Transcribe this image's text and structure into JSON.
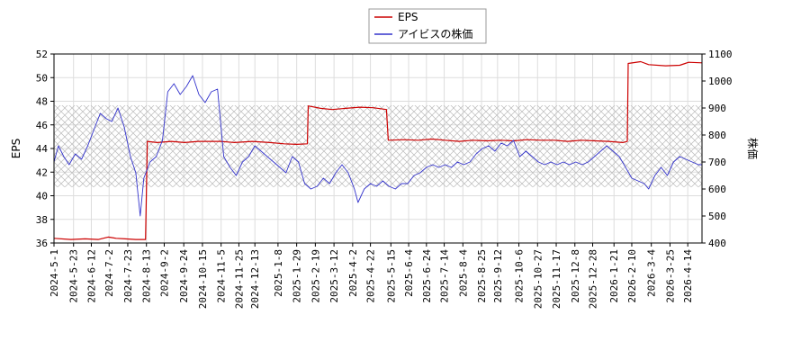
{
  "chart_data": {
    "type": "line",
    "title": "",
    "xlabel": "",
    "ylabel_left": "EPS",
    "ylabel_right": "株価",
    "left_ylim": [
      36,
      52
    ],
    "left_ticks": [
      "36",
      "38",
      "40",
      "42",
      "44",
      "46",
      "48",
      "50",
      "52"
    ],
    "right_ylim": [
      400,
      1100
    ],
    "right_ticks": [
      "400",
      "500",
      "600",
      "700",
      "800",
      "900",
      "1000",
      "1100"
    ],
    "x_start": "2024-05-01",
    "x_end": "2026-04-30",
    "x_ticks": [
      "2024-5-1",
      "2024-5-23",
      "2024-6-12",
      "2024-7-2",
      "2024-7-23",
      "2024-8-13",
      "2024-9-2",
      "2024-9-24",
      "2024-10-15",
      "2024-11-5",
      "2024-11-25",
      "2024-12-13",
      "2025-1-8",
      "2025-1-29",
      "2025-2-19",
      "2025-3-12",
      "2025-4-2",
      "2025-4-22",
      "2025-5-15",
      "2025-6-4",
      "2025-6-24",
      "2025-7-14",
      "2025-8-4",
      "2025-8-25",
      "2025-9-12",
      "2025-10-6",
      "2025-10-27",
      "2025-11-17",
      "2025-12-8",
      "2025-12-28",
      "2026-1-21",
      "2026-2-10",
      "2026-3-4",
      "2026-3-25",
      "2026-4-14"
    ],
    "grid": true,
    "legend_position": "top-center",
    "band_right_axis": [
      607,
      910
    ],
    "series": [
      {
        "name": "EPS",
        "axis": "left",
        "color": "#cc0000",
        "points": [
          [
            "2024-05-01",
            36.4
          ],
          [
            "2024-05-20",
            36.3
          ],
          [
            "2024-06-05",
            36.35
          ],
          [
            "2024-06-20",
            36.3
          ],
          [
            "2024-07-01",
            36.5
          ],
          [
            "2024-07-10",
            36.4
          ],
          [
            "2024-07-20",
            36.35
          ],
          [
            "2024-08-01",
            36.3
          ],
          [
            "2024-08-12",
            36.3
          ],
          [
            "2024-08-14",
            44.6
          ],
          [
            "2024-08-25",
            44.5
          ],
          [
            "2024-09-10",
            44.6
          ],
          [
            "2024-09-25",
            44.5
          ],
          [
            "2024-10-10",
            44.6
          ],
          [
            "2024-10-25",
            44.6
          ],
          [
            "2024-11-05",
            44.6
          ],
          [
            "2024-11-20",
            44.5
          ],
          [
            "2024-12-10",
            44.6
          ],
          [
            "2024-12-30",
            44.5
          ],
          [
            "2025-01-15",
            44.4
          ],
          [
            "2025-01-29",
            44.35
          ],
          [
            "2025-02-10",
            44.4
          ],
          [
            "2025-02-11",
            47.6
          ],
          [
            "2025-02-25",
            47.4
          ],
          [
            "2025-03-10",
            47.3
          ],
          [
            "2025-03-25",
            47.4
          ],
          [
            "2025-04-10",
            47.5
          ],
          [
            "2025-04-25",
            47.45
          ],
          [
            "2025-05-10",
            47.3
          ],
          [
            "2025-05-12",
            44.7
          ],
          [
            "2025-05-30",
            44.75
          ],
          [
            "2025-06-15",
            44.7
          ],
          [
            "2025-06-30",
            44.8
          ],
          [
            "2025-07-15",
            44.7
          ],
          [
            "2025-07-31",
            44.6
          ],
          [
            "2025-08-15",
            44.7
          ],
          [
            "2025-08-31",
            44.65
          ],
          [
            "2025-09-15",
            44.7
          ],
          [
            "2025-09-30",
            44.65
          ],
          [
            "2025-10-15",
            44.75
          ],
          [
            "2025-10-31",
            44.7
          ],
          [
            "2025-11-15",
            44.7
          ],
          [
            "2025-11-30",
            44.6
          ],
          [
            "2025-12-15",
            44.7
          ],
          [
            "2025-12-31",
            44.65
          ],
          [
            "2026-01-15",
            44.6
          ],
          [
            "2026-01-31",
            44.5
          ],
          [
            "2026-02-05",
            44.6
          ],
          [
            "2026-02-06",
            51.2
          ],
          [
            "2026-02-20",
            51.35
          ],
          [
            "2026-03-01",
            51.1
          ],
          [
            "2026-03-20",
            51.0
          ],
          [
            "2026-04-05",
            51.05
          ],
          [
            "2026-04-15",
            51.3
          ],
          [
            "2026-04-30",
            51.25
          ]
        ]
      },
      {
        "name": "アイビスの株価",
        "axis": "right",
        "color": "#3333cc",
        "points": [
          [
            "2024-05-01",
            700
          ],
          [
            "2024-05-06",
            760
          ],
          [
            "2024-05-12",
            720
          ],
          [
            "2024-05-18",
            690
          ],
          [
            "2024-05-25",
            730
          ],
          [
            "2024-06-01",
            710
          ],
          [
            "2024-06-08",
            760
          ],
          [
            "2024-06-15",
            820
          ],
          [
            "2024-06-22",
            880
          ],
          [
            "2024-06-29",
            860
          ],
          [
            "2024-07-05",
            850
          ],
          [
            "2024-07-12",
            900
          ],
          [
            "2024-07-19",
            830
          ],
          [
            "2024-07-26",
            720
          ],
          [
            "2024-08-01",
            660
          ],
          [
            "2024-08-06",
            500
          ],
          [
            "2024-08-10",
            640
          ],
          [
            "2024-08-17",
            700
          ],
          [
            "2024-08-24",
            720
          ],
          [
            "2024-08-31",
            780
          ],
          [
            "2024-09-06",
            960
          ],
          [
            "2024-09-13",
            990
          ],
          [
            "2024-09-20",
            950
          ],
          [
            "2024-09-27",
            980
          ],
          [
            "2024-10-04",
            1020
          ],
          [
            "2024-10-11",
            950
          ],
          [
            "2024-10-18",
            920
          ],
          [
            "2024-10-25",
            960
          ],
          [
            "2024-11-01",
            970
          ],
          [
            "2024-11-08",
            720
          ],
          [
            "2024-11-15",
            680
          ],
          [
            "2024-11-22",
            650
          ],
          [
            "2024-11-29",
            700
          ],
          [
            "2024-12-06",
            720
          ],
          [
            "2024-12-13",
            760
          ],
          [
            "2024-12-20",
            740
          ],
          [
            "2024-12-27",
            720
          ],
          [
            "2025-01-03",
            700
          ],
          [
            "2025-01-10",
            680
          ],
          [
            "2025-01-17",
            660
          ],
          [
            "2025-01-24",
            720
          ],
          [
            "2025-01-31",
            700
          ],
          [
            "2025-02-07",
            620
          ],
          [
            "2025-02-14",
            600
          ],
          [
            "2025-02-21",
            610
          ],
          [
            "2025-02-28",
            640
          ],
          [
            "2025-03-07",
            620
          ],
          [
            "2025-03-14",
            660
          ],
          [
            "2025-03-21",
            690
          ],
          [
            "2025-03-28",
            660
          ],
          [
            "2025-04-04",
            600
          ],
          [
            "2025-04-08",
            550
          ],
          [
            "2025-04-15",
            600
          ],
          [
            "2025-04-22",
            620
          ],
          [
            "2025-04-29",
            610
          ],
          [
            "2025-05-06",
            630
          ],
          [
            "2025-05-13",
            610
          ],
          [
            "2025-05-20",
            600
          ],
          [
            "2025-05-27",
            620
          ],
          [
            "2025-06-03",
            620
          ],
          [
            "2025-06-10",
            650
          ],
          [
            "2025-06-17",
            660
          ],
          [
            "2025-06-24",
            680
          ],
          [
            "2025-07-01",
            690
          ],
          [
            "2025-07-08",
            680
          ],
          [
            "2025-07-15",
            690
          ],
          [
            "2025-07-22",
            680
          ],
          [
            "2025-07-29",
            700
          ],
          [
            "2025-08-05",
            690
          ],
          [
            "2025-08-12",
            700
          ],
          [
            "2025-08-19",
            730
          ],
          [
            "2025-08-26",
            750
          ],
          [
            "2025-09-02",
            760
          ],
          [
            "2025-09-09",
            740
          ],
          [
            "2025-09-16",
            770
          ],
          [
            "2025-09-23",
            760
          ],
          [
            "2025-09-30",
            780
          ],
          [
            "2025-10-07",
            720
          ],
          [
            "2025-10-14",
            740
          ],
          [
            "2025-10-21",
            720
          ],
          [
            "2025-10-28",
            700
          ],
          [
            "2025-11-04",
            690
          ],
          [
            "2025-11-11",
            700
          ],
          [
            "2025-11-18",
            690
          ],
          [
            "2025-11-25",
            700
          ],
          [
            "2025-12-02",
            690
          ],
          [
            "2025-12-09",
            700
          ],
          [
            "2025-12-16",
            690
          ],
          [
            "2025-12-23",
            700
          ],
          [
            "2025-12-30",
            720
          ],
          [
            "2026-01-06",
            740
          ],
          [
            "2026-01-13",
            760
          ],
          [
            "2026-01-20",
            740
          ],
          [
            "2026-01-27",
            720
          ],
          [
            "2026-02-03",
            680
          ],
          [
            "2026-02-10",
            640
          ],
          [
            "2026-02-17",
            630
          ],
          [
            "2026-02-24",
            620
          ],
          [
            "2026-03-01",
            600
          ],
          [
            "2026-03-08",
            650
          ],
          [
            "2026-03-15",
            680
          ],
          [
            "2026-03-22",
            650
          ],
          [
            "2026-03-29",
            700
          ],
          [
            "2026-04-05",
            720
          ],
          [
            "2026-04-12",
            710
          ],
          [
            "2026-04-19",
            700
          ],
          [
            "2026-04-26",
            690
          ],
          [
            "2026-04-30",
            690
          ]
        ]
      }
    ]
  }
}
